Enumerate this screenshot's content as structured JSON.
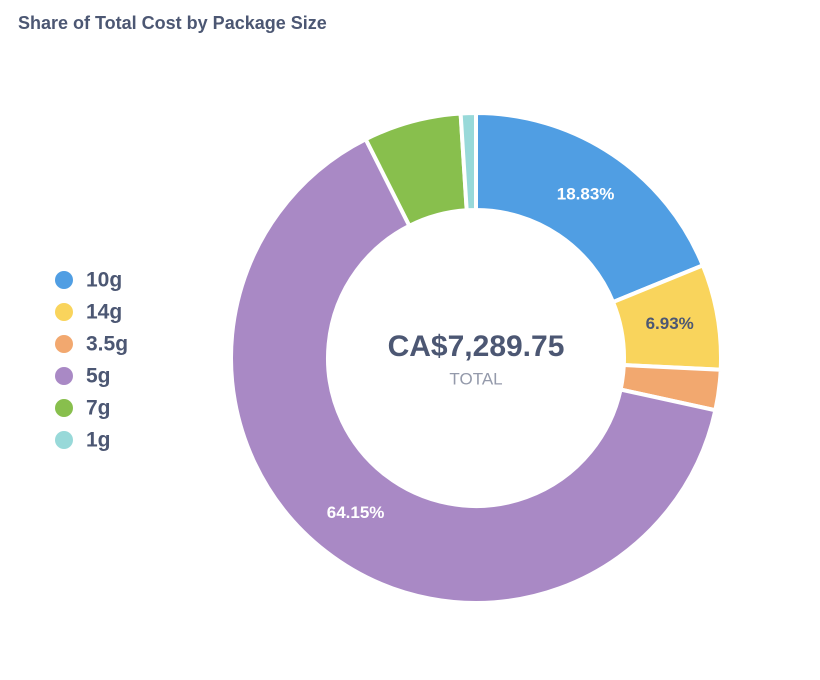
{
  "chart_data": {
    "type": "donut",
    "title": "Share of Total Cost by Package Size",
    "categories": [
      "10g",
      "14g",
      "3.5g",
      "5g",
      "7g",
      "1g"
    ],
    "values": [
      18.83,
      6.93,
      2.66,
      64.15,
      6.43,
      1.0
    ],
    "value_labels": [
      "18.83%",
      "6.93%",
      null,
      "64.15%",
      null,
      null
    ],
    "colors": [
      "#509ee3",
      "#f9d45c",
      "#f2a86f",
      "#a989c5",
      "#88bf4d",
      "#98d9d9"
    ],
    "total_value": "CA$7,289.75",
    "total_label": "TOTAL",
    "legend": "left"
  }
}
